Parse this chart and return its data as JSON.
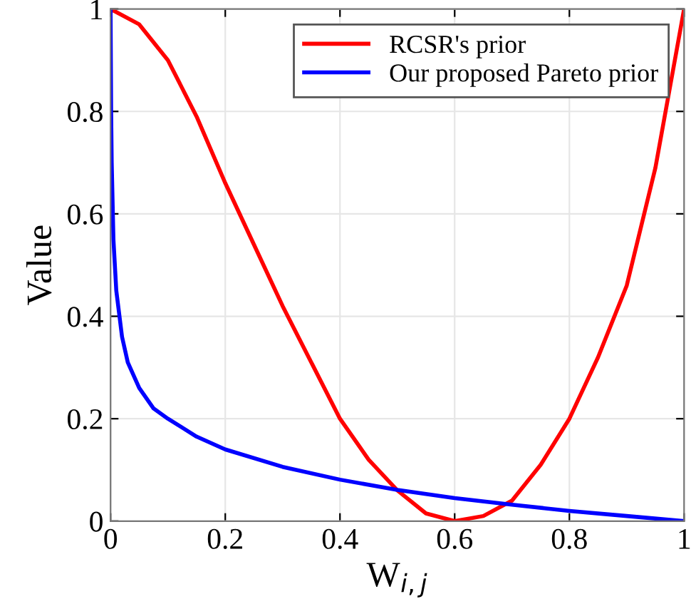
{
  "chart_data": {
    "type": "line",
    "xlabel": "W$_{i,j}$",
    "ylabel": "Value",
    "xlim": [
      0,
      1
    ],
    "ylim": [
      0,
      1
    ],
    "xticks": [
      0,
      0.2,
      0.4,
      0.6,
      0.8,
      1
    ],
    "yticks": [
      0,
      0.2,
      0.4,
      0.6,
      0.8,
      1
    ],
    "grid": true,
    "legend": "top right",
    "marker": "none",
    "line_style": "solid",
    "series": [
      {
        "name": "RCSR's prior",
        "color": "#ff0000",
        "x": [
          0,
          0.05,
          0.1,
          0.15,
          0.2,
          0.25,
          0.3,
          0.35,
          0.4,
          0.45,
          0.5,
          0.55,
          0.6,
          0.65,
          0.7,
          0.75,
          0.8,
          0.85,
          0.9,
          0.95,
          1
        ],
        "values": [
          1,
          0.97,
          0.9,
          0.79,
          0.66,
          0.54,
          0.42,
          0.31,
          0.2,
          0.12,
          0.06,
          0.015,
          0,
          0.01,
          0.04,
          0.11,
          0.2,
          0.32,
          0.46,
          0.69,
          1
        ]
      },
      {
        "name": "Our proposed Pareto prior",
        "color": "#0000ff",
        "x": [
          0,
          0.001,
          0.002,
          0.005,
          0.01,
          0.02,
          0.03,
          0.05,
          0.075,
          0.1,
          0.15,
          0.2,
          0.3,
          0.4,
          0.5,
          0.6,
          0.7,
          0.8,
          0.9,
          1
        ],
        "values": [
          1,
          0.8,
          0.7,
          0.55,
          0.45,
          0.36,
          0.31,
          0.26,
          0.22,
          0.2,
          0.165,
          0.14,
          0.106,
          0.081,
          0.061,
          0.045,
          0.032,
          0.02,
          0.01,
          0
        ]
      }
    ]
  }
}
